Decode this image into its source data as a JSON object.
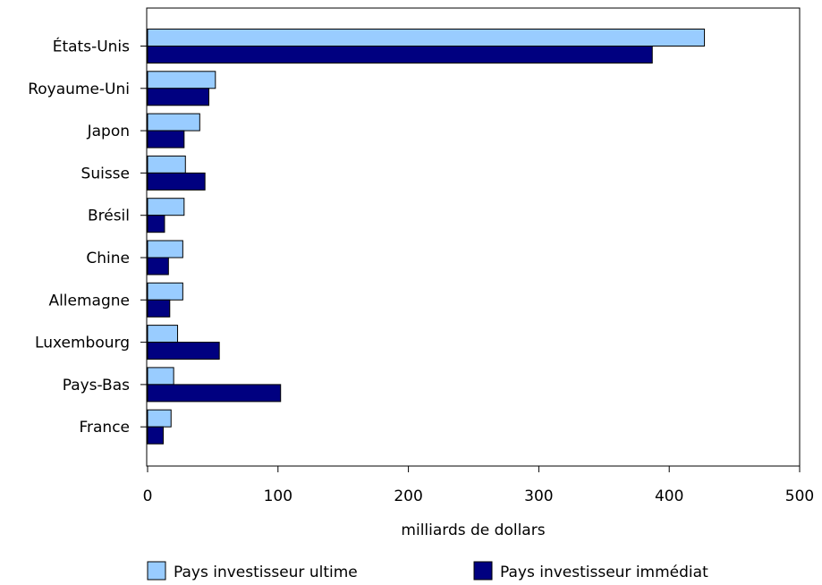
{
  "chart_data": {
    "type": "bar",
    "orientation": "horizontal",
    "categories": [
      "États-Unis",
      "Royaume-Uni",
      "Japon",
      "Suisse",
      "Brésil",
      "Chine",
      "Allemagne",
      "Luxembourg",
      "Pays-Bas",
      "France"
    ],
    "series": [
      {
        "name": "Pays investisseur ultime",
        "color": "#99ccff",
        "values": [
          427,
          52,
          40,
          29,
          28,
          27,
          27,
          23,
          20,
          18
        ]
      },
      {
        "name": "Pays investisseur immédiat",
        "color": "#000080",
        "values": [
          387,
          47,
          28,
          44,
          13,
          16,
          17,
          55,
          102,
          12
        ]
      }
    ],
    "xlabel": "milliards de dollars",
    "xlim": [
      0,
      500
    ],
    "xticks": [
      "0",
      "100",
      "200",
      "300",
      "400",
      "500"
    ],
    "grid": false,
    "legend_position": "bottom"
  }
}
